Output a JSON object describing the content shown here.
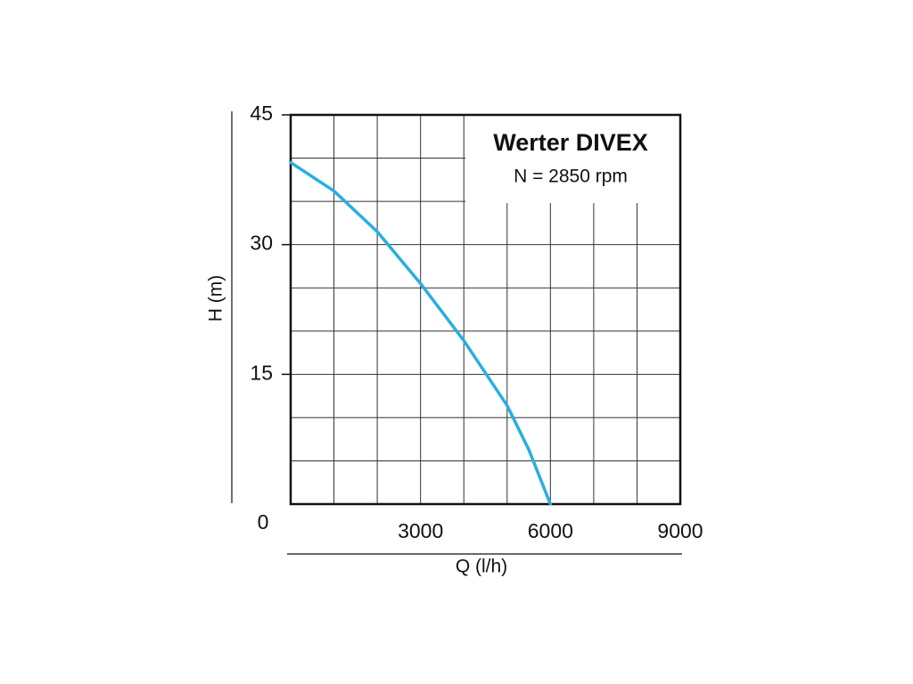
{
  "chart_data": {
    "type": "line",
    "title": "Werter DIVEX",
    "subtitle": "N = 2850 rpm",
    "x_label": "Q (l/h)",
    "y_label": "H (m)",
    "series": [
      {
        "name": "Werter DIVEX",
        "color": "#2aaee0",
        "x": [
          0,
          1000,
          2000,
          3000,
          4000,
          5000,
          5500,
          6000
        ],
        "values": [
          39.5,
          36.2,
          31.5,
          25.5,
          18.9,
          11.4,
          6.3,
          0
        ]
      }
    ],
    "xlim": [
      0,
      9000
    ],
    "ylim": [
      0,
      45
    ],
    "xticks": [
      3000,
      6000,
      9000
    ],
    "yticks": [
      0,
      15,
      30,
      45
    ],
    "xgrid": [
      1000,
      2000,
      3000,
      4000,
      5000,
      6000,
      7000,
      8000
    ],
    "ygrid": [
      5,
      10,
      15,
      20,
      25,
      30,
      35,
      40
    ],
    "grid": true
  }
}
